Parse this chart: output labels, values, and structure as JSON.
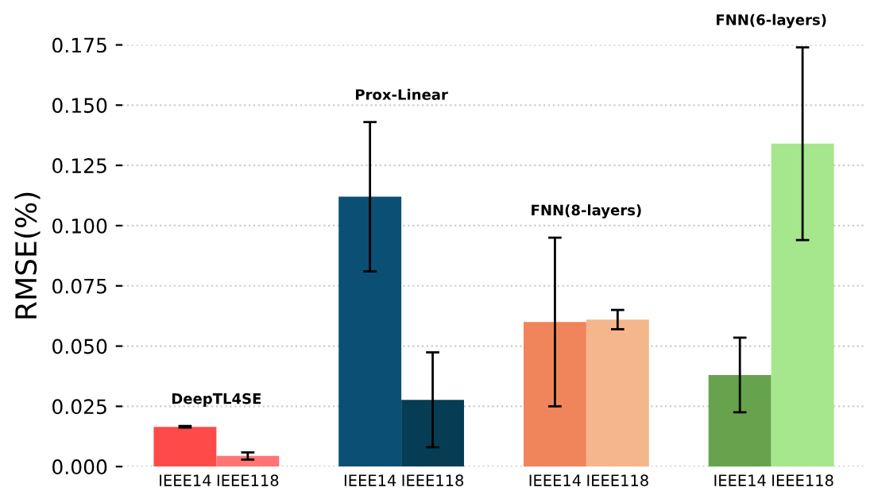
{
  "chart_data": {
    "type": "bar",
    "ylabel": "RMSE(%)",
    "categories": [
      "IEEE14",
      "IEEE118",
      "IEEE14",
      "IEEE118",
      "IEEE14",
      "IEEE118",
      "IEEE14",
      "IEEE118"
    ],
    "values": [
      0.0165,
      0.0044,
      0.112,
      0.0277,
      0.06,
      0.061,
      0.038,
      0.134
    ],
    "errors": [
      0.0003,
      0.0015,
      0.031,
      0.0197,
      0.035,
      0.004,
      0.0155,
      0.04
    ],
    "colors": [
      "#ff4a4a",
      "#ff7575",
      "#0b4f74",
      "#063d55",
      "#f0845a",
      "#f5b68c",
      "#66a34c",
      "#a6e68c"
    ],
    "annotations": [
      "DeepTL4SE",
      "Prox-Linear",
      "FNN(8-layers)",
      "FNN(6-layers)"
    ],
    "ylim": [
      0,
      0.175
    ],
    "yticks": [
      {
        "value": 0,
        "label": "0.000"
      },
      {
        "value": 0.025,
        "label": "0.025"
      },
      {
        "value": 0.05,
        "label": "0.050"
      },
      {
        "value": 0.075,
        "label": "0.075"
      },
      {
        "value": 0.1,
        "label": "0.100"
      },
      {
        "value": 0.125,
        "label": "0.125"
      },
      {
        "value": 0.15,
        "label": "0.150"
      },
      {
        "value": 0.175,
        "label": "0.175"
      }
    ],
    "grid": "y"
  }
}
